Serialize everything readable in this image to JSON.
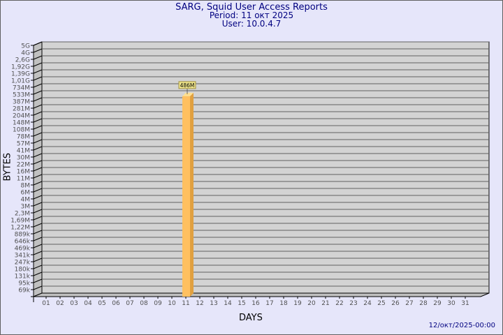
{
  "chart_data": {
    "type": "bar",
    "title": "SARG, Squid User Access Reports",
    "subtitle": [
      "Period: 11 окт 2025",
      "User: 10.0.4.7"
    ],
    "xlabel": "DAYS",
    "ylabel": "BYTES",
    "yscale": "log",
    "yticks": [
      "5G",
      "4G",
      "2,6G",
      "1,92G",
      "1,39G",
      "1,01G",
      "734M",
      "533M",
      "387M",
      "281M",
      "204M",
      "148M",
      "108M",
      "78M",
      "57M",
      "41M",
      "30M",
      "22M",
      "16M",
      "11M",
      "8M",
      "6M",
      "4M",
      "3M",
      "2,3M",
      "1,69M",
      "1,22M",
      "889k",
      "646k",
      "469k",
      "341k",
      "247k",
      "180k",
      "131k",
      "95k",
      "69k"
    ],
    "categories": [
      "01",
      "02",
      "03",
      "04",
      "05",
      "06",
      "07",
      "08",
      "09",
      "10",
      "11",
      "12",
      "13",
      "14",
      "15",
      "16",
      "17",
      "18",
      "19",
      "20",
      "21",
      "22",
      "23",
      "24",
      "25",
      "26",
      "27",
      "28",
      "29",
      "30",
      "31"
    ],
    "bars": [
      {
        "day": "11",
        "value_label": "486M",
        "value_index_between": [
          "533M",
          "387M"
        ]
      }
    ],
    "grid": true,
    "colors": {
      "bar": "#ffc060",
      "bar_side": "#e0a040",
      "wall": "#d3d3d3",
      "background": "#e6e6fa",
      "title": "#000080"
    },
    "footer": "12/окт/2025-00:00"
  }
}
